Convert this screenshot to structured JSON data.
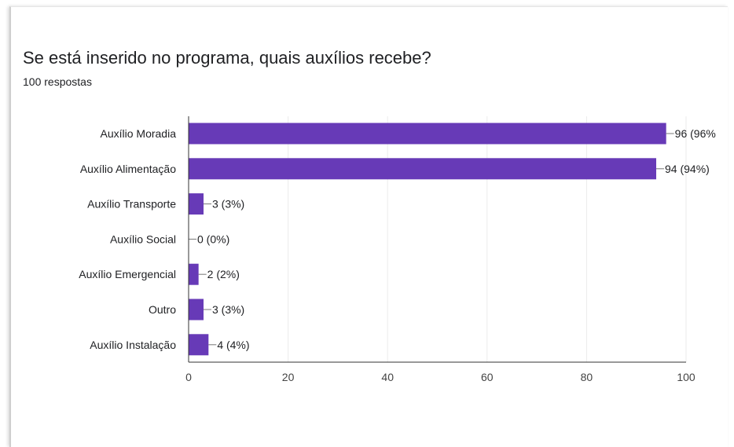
{
  "header": {
    "title": "Se está inserido no programa, quais auxílios recebe?",
    "subtitle": "100 respostas"
  },
  "colors": {
    "bar": "#673ab7",
    "grid": "#ebebeb",
    "axis": "#333333",
    "text": "#202124"
  },
  "chart_data": {
    "type": "bar",
    "orientation": "horizontal",
    "categories": [
      "Auxílio Moradia",
      "Auxílio Alimentação",
      "Auxílio Transporte",
      "Auxílio Social",
      "Auxílio Emergencial",
      "Outro",
      "Auxílio Instalação"
    ],
    "values": [
      96,
      94,
      3,
      0,
      2,
      3,
      4
    ],
    "data_labels": [
      "96 (96%",
      "94 (94%)",
      "3 (3%)",
      "0 (0%)",
      "2 (2%)",
      "3 (3%)",
      "4 (4%)"
    ],
    "xlim": [
      0,
      100
    ],
    "x_ticks": [
      0,
      20,
      40,
      60,
      80,
      100
    ],
    "grid": true,
    "title": "Se está inserido no programa, quais auxílios recebe?",
    "subtitle": "100 respostas",
    "xlabel": "",
    "ylabel": ""
  }
}
